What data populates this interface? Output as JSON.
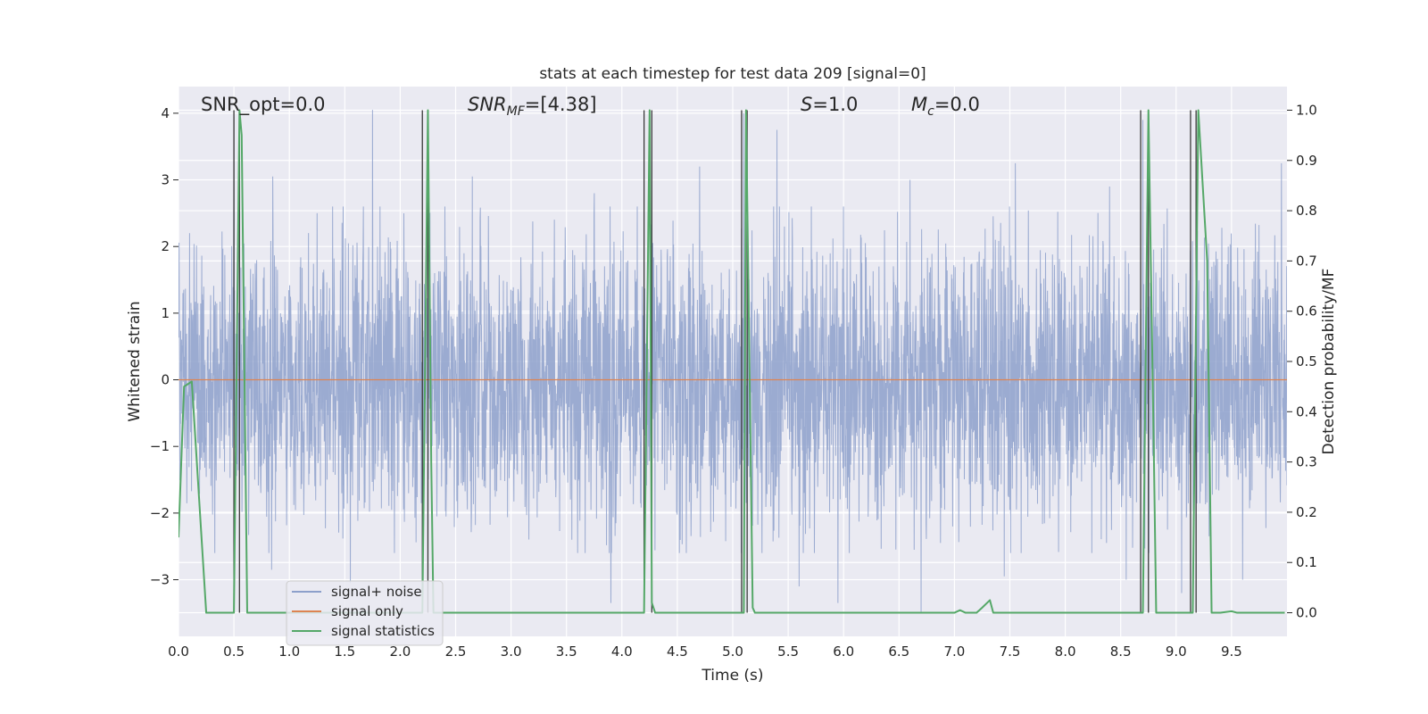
{
  "chart_data": {
    "type": "line",
    "title": "stats at each timestep for test data 209 [signal=0]",
    "xlabel": "Time (s)",
    "ylabel": "Whitened strain",
    "y2label": "Detection probability/MF",
    "xlim": [
      0.0,
      10.0
    ],
    "ylim": [
      -3.85,
      4.4
    ],
    "y2lim": [
      -0.047,
      1.047
    ],
    "xticks": [
      0.0,
      0.5,
      1.0,
      1.5,
      2.0,
      2.5,
      3.0,
      3.5,
      4.0,
      4.5,
      5.0,
      5.5,
      6.0,
      6.5,
      7.0,
      7.5,
      8.0,
      8.5,
      9.0,
      9.5
    ],
    "xtick_labels": [
      "0.0",
      "0.5",
      "1.0",
      "1.5",
      "2.0",
      "2.5",
      "3.0",
      "3.5",
      "4.0",
      "4.5",
      "5.0",
      "5.5",
      "6.0",
      "6.5",
      "7.0",
      "7.5",
      "8.0",
      "8.5",
      "9.0",
      "9.5"
    ],
    "yticks": [
      -3,
      -2,
      -1,
      0,
      1,
      2,
      3,
      4
    ],
    "ytick_labels": [
      "−3",
      "−2",
      "−1",
      "0",
      "1",
      "2",
      "3",
      "4"
    ],
    "y2ticks": [
      0.0,
      0.1,
      0.2,
      0.3,
      0.4,
      0.5,
      0.6,
      0.7,
      0.8,
      0.9,
      1.0
    ],
    "y2tick_labels": [
      "0.0",
      "0.1",
      "0.2",
      "0.3",
      "0.4",
      "0.5",
      "0.6",
      "0.7",
      "0.8",
      "0.9",
      "1.0"
    ],
    "annotations": [
      {
        "text": "SNR_opt=0.0"
      },
      {
        "text": "SNR",
        "sub": "MF",
        "suffix": "=[4.38]"
      },
      {
        "text": "S",
        "suffix": "=1.0"
      },
      {
        "text": "M",
        "sub": "c",
        "suffix": "=0.0"
      }
    ],
    "legend": {
      "position": "lower-left",
      "entries": [
        {
          "label": "signal+ noise",
          "color": "#8da0cb"
        },
        {
          "label": "signal only",
          "color": "#dd8452"
        },
        {
          "label": "signal statistics",
          "color": "#55a868"
        }
      ]
    },
    "detection_lines_x": [
      0.5,
      0.55,
      2.2,
      2.25,
      4.2,
      4.27,
      5.08,
      5.13,
      8.68,
      8.75,
      9.13,
      9.18
    ],
    "series": [
      {
        "name": "signal+ noise",
        "axis": "left",
        "color": "#8da0cb",
        "kind": "noise",
        "envelope_sigma": 1.0,
        "peak_points": [
          {
            "x": 0.1,
            "y": 2.2
          },
          {
            "x": 0.5,
            "y": 3.95
          },
          {
            "x": 0.85,
            "y": 3.05
          },
          {
            "x": 0.84,
            "y": -2.85
          },
          {
            "x": 1.25,
            "y": 2.5
          },
          {
            "x": 1.55,
            "y": -3.05
          },
          {
            "x": 1.75,
            "y": 4.05
          },
          {
            "x": 2.25,
            "y": 4.0
          },
          {
            "x": 2.65,
            "y": 3.05
          },
          {
            "x": 3.75,
            "y": 2.8
          },
          {
            "x": 3.9,
            "y": -3.35
          },
          {
            "x": 4.7,
            "y": 3.2
          },
          {
            "x": 5.1,
            "y": 4.0
          },
          {
            "x": 5.4,
            "y": 3.75
          },
          {
            "x": 5.6,
            "y": -3.1
          },
          {
            "x": 5.95,
            "y": -3.35
          },
          {
            "x": 6.6,
            "y": 3.0
          },
          {
            "x": 6.7,
            "y": -3.5
          },
          {
            "x": 7.55,
            "y": 3.25
          },
          {
            "x": 7.45,
            "y": -2.95
          },
          {
            "x": 8.4,
            "y": 2.9
          },
          {
            "x": 8.55,
            "y": -3.0
          },
          {
            "x": 8.7,
            "y": 3.9
          },
          {
            "x": 9.05,
            "y": -3.2
          },
          {
            "x": 9.6,
            "y": -3.0
          },
          {
            "x": 9.95,
            "y": 3.25
          }
        ]
      },
      {
        "name": "signal only",
        "axis": "left",
        "color": "#dd8452",
        "x": [
          0.0,
          10.0
        ],
        "y": [
          0.0,
          0.0
        ]
      },
      {
        "name": "signal statistics",
        "axis": "right",
        "color": "#55a868",
        "x": [
          0.0,
          0.05,
          0.12,
          0.25,
          0.5,
          0.5,
          0.55,
          0.57,
          0.62,
          0.63,
          2.18,
          2.2,
          2.25,
          2.28,
          2.3,
          4.18,
          4.2,
          4.25,
          4.27,
          4.3,
          5.08,
          5.1,
          5.12,
          5.18,
          5.2,
          7.0,
          7.05,
          7.1,
          7.2,
          7.25,
          7.32,
          7.35,
          8.68,
          8.7,
          8.75,
          8.8,
          8.82,
          9.12,
          9.15,
          9.2,
          9.28,
          9.32,
          9.4,
          9.5,
          9.55,
          9.98
        ],
        "y": [
          0.15,
          0.45,
          0.46,
          0.0,
          0.0,
          0.0,
          1.0,
          0.95,
          0.0,
          0.0,
          0.0,
          0.0,
          1.0,
          0.3,
          0.0,
          0.0,
          0.0,
          1.0,
          0.02,
          0.0,
          0.0,
          0.0,
          1.0,
          0.01,
          0.0,
          0.0,
          0.005,
          0.0,
          0.0,
          0.01,
          0.025,
          0.0,
          0.0,
          0.0,
          1.0,
          0.3,
          0.0,
          0.0,
          0.0,
          1.0,
          0.7,
          0.0,
          0.0,
          0.003,
          0.0,
          0.0
        ]
      }
    ]
  }
}
